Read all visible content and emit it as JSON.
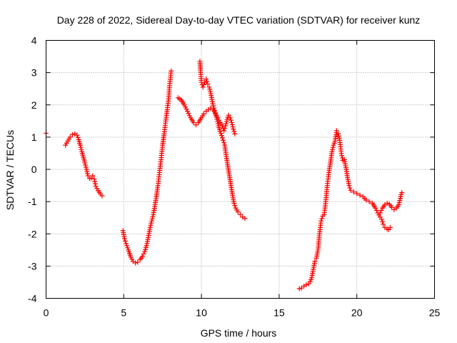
{
  "chart_data": {
    "type": "scatter",
    "title": "Day 228 of 2022, Sidereal Day-to-day VTEC variation (SDTVAR) for receiver kunz",
    "xlabel": "GPS time / hours",
    "ylabel": "SDTVAR / TECUs",
    "xlim": [
      0,
      25
    ],
    "ylim": [
      -4,
      4
    ],
    "xticks": [
      "0",
      "5",
      "10",
      "15",
      "20",
      "25"
    ],
    "yticks": [
      "-4",
      "-3",
      "-2",
      "-1",
      "0",
      "1",
      "2",
      "3",
      "4"
    ],
    "grid": true,
    "marker": "+",
    "series": [
      {
        "name": "SDTVAR",
        "color": "#ff0000",
        "segments": [
          [
            [
              0.0,
              1.12
            ]
          ],
          [
            [
              1.25,
              0.75
            ],
            [
              1.4,
              0.88
            ],
            [
              1.55,
              1.0
            ],
            [
              1.7,
              1.08
            ],
            [
              1.85,
              1.1
            ],
            [
              2.0,
              1.06
            ],
            [
              2.1,
              0.92
            ],
            [
              2.2,
              0.75
            ],
            [
              2.3,
              0.55
            ],
            [
              2.4,
              0.38
            ],
            [
              2.5,
              0.2
            ],
            [
              2.6,
              0.0
            ],
            [
              2.7,
              -0.2
            ],
            [
              2.8,
              -0.28
            ],
            [
              2.9,
              -0.27
            ],
            [
              3.0,
              -0.2
            ],
            [
              3.1,
              -0.3
            ],
            [
              3.2,
              -0.52
            ],
            [
              3.35,
              -0.66
            ],
            [
              3.5,
              -0.76
            ],
            [
              3.6,
              -0.82
            ]
          ],
          [
            [
              4.95,
              -1.9
            ],
            [
              5.05,
              -2.15
            ],
            [
              5.15,
              -2.3
            ],
            [
              5.3,
              -2.5
            ],
            [
              5.45,
              -2.72
            ],
            [
              5.6,
              -2.85
            ],
            [
              5.75,
              -2.9
            ],
            [
              5.9,
              -2.88
            ],
            [
              6.05,
              -2.8
            ],
            [
              6.2,
              -2.7
            ],
            [
              6.35,
              -2.55
            ],
            [
              6.5,
              -2.3
            ],
            [
              6.6,
              -2.05
            ],
            [
              6.7,
              -1.8
            ],
            [
              6.8,
              -1.6
            ],
            [
              6.9,
              -1.4
            ],
            [
              7.0,
              -1.15
            ],
            [
              7.1,
              -0.85
            ],
            [
              7.2,
              -0.5
            ],
            [
              7.3,
              -0.1
            ],
            [
              7.4,
              0.3
            ],
            [
              7.5,
              0.75
            ],
            [
              7.6,
              1.1
            ],
            [
              7.7,
              1.5
            ],
            [
              7.8,
              1.85
            ],
            [
              7.9,
              2.25
            ],
            [
              7.95,
              2.6
            ],
            [
              8.05,
              3.05
            ]
          ],
          [
            [
              8.5,
              2.22
            ],
            [
              8.7,
              2.15
            ],
            [
              8.9,
              2.0
            ],
            [
              9.1,
              1.8
            ],
            [
              9.3,
              1.6
            ],
            [
              9.5,
              1.45
            ],
            [
              9.65,
              1.38
            ],
            [
              9.8,
              1.45
            ],
            [
              10.0,
              1.6
            ],
            [
              10.15,
              1.72
            ],
            [
              10.3,
              1.8
            ],
            [
              10.45,
              1.85
            ],
            [
              10.6,
              1.9
            ],
            [
              10.75,
              1.85
            ],
            [
              10.9,
              1.72
            ],
            [
              11.05,
              1.6
            ],
            [
              11.2,
              1.45
            ],
            [
              11.35,
              1.35
            ],
            [
              11.45,
              1.2
            ],
            [
              11.55,
              1.35
            ],
            [
              11.65,
              1.55
            ],
            [
              11.75,
              1.68
            ],
            [
              11.85,
              1.6
            ],
            [
              11.95,
              1.45
            ],
            [
              12.05,
              1.25
            ],
            [
              12.15,
              1.1
            ]
          ],
          [
            [
              9.9,
              3.35
            ],
            [
              9.95,
              3.0
            ],
            [
              10.0,
              2.7
            ],
            [
              10.1,
              2.55
            ],
            [
              10.2,
              2.7
            ],
            [
              10.3,
              2.8
            ],
            [
              10.4,
              2.65
            ],
            [
              10.5,
              2.55
            ],
            [
              10.6,
              2.35
            ],
            [
              10.7,
              2.1
            ],
            [
              10.8,
              1.9
            ],
            [
              10.9,
              1.75
            ],
            [
              11.0,
              1.55
            ],
            [
              11.1,
              1.35
            ],
            [
              11.2,
              1.18
            ],
            [
              11.3,
              1.05
            ],
            [
              11.4,
              0.9
            ],
            [
              11.5,
              0.75
            ],
            [
              11.6,
              0.4
            ],
            [
              11.7,
              0.1
            ],
            [
              11.8,
              -0.2
            ],
            [
              11.9,
              -0.5
            ],
            [
              12.0,
              -0.8
            ],
            [
              12.1,
              -1.05
            ],
            [
              12.2,
              -1.2
            ],
            [
              12.35,
              -1.32
            ],
            [
              12.5,
              -1.4
            ],
            [
              12.65,
              -1.48
            ],
            [
              12.8,
              -1.52
            ]
          ],
          [
            [
              16.3,
              -3.7
            ],
            [
              16.45,
              -3.68
            ],
            [
              16.6,
              -3.62
            ],
            [
              16.75,
              -3.58
            ],
            [
              16.9,
              -3.55
            ],
            [
              17.0,
              -3.48
            ],
            [
              17.1,
              -3.35
            ],
            [
              17.2,
              -3.1
            ],
            [
              17.3,
              -2.85
            ],
            [
              17.4,
              -2.75
            ],
            [
              17.5,
              -2.5
            ],
            [
              17.6,
              -2.0
            ],
            [
              17.7,
              -1.6
            ],
            [
              17.8,
              -1.45
            ],
            [
              17.9,
              -1.4
            ],
            [
              18.0,
              -1.0
            ],
            [
              18.1,
              -0.5
            ],
            [
              18.2,
              -0.1
            ],
            [
              18.3,
              0.2
            ],
            [
              18.4,
              0.55
            ],
            [
              18.5,
              0.75
            ],
            [
              18.6,
              0.88
            ],
            [
              18.7,
              1.2
            ],
            [
              18.8,
              1.1
            ],
            [
              18.9,
              0.9
            ],
            [
              19.0,
              0.5
            ],
            [
              19.1,
              0.28
            ],
            [
              19.2,
              0.3
            ],
            [
              19.3,
              0.05
            ],
            [
              19.4,
              -0.25
            ],
            [
              19.5,
              -0.5
            ],
            [
              19.6,
              -0.65
            ],
            [
              19.8,
              -0.7
            ],
            [
              20.0,
              -0.75
            ],
            [
              20.2,
              -0.8
            ],
            [
              20.4,
              -0.85
            ],
            [
              20.6,
              -0.95
            ],
            [
              20.8,
              -1.0
            ],
            [
              21.0,
              -1.05
            ],
            [
              21.2,
              -1.2
            ],
            [
              21.35,
              -1.35
            ],
            [
              21.5,
              -1.48
            ],
            [
              21.6,
              -1.55
            ],
            [
              21.7,
              -1.7
            ],
            [
              21.8,
              -1.8
            ],
            [
              21.95,
              -1.85
            ],
            [
              22.05,
              -1.87
            ],
            [
              22.15,
              -1.8
            ]
          ],
          [
            [
              21.5,
              -1.35
            ],
            [
              21.65,
              -1.2
            ],
            [
              21.8,
              -1.1
            ],
            [
              21.95,
              -1.05
            ],
            [
              22.1,
              -1.08
            ],
            [
              22.25,
              -1.18
            ],
            [
              22.4,
              -1.25
            ],
            [
              22.55,
              -1.2
            ],
            [
              22.7,
              -1.1
            ],
            [
              22.8,
              -0.9
            ],
            [
              22.85,
              -0.78
            ],
            [
              22.9,
              -0.72
            ]
          ]
        ]
      }
    ]
  }
}
